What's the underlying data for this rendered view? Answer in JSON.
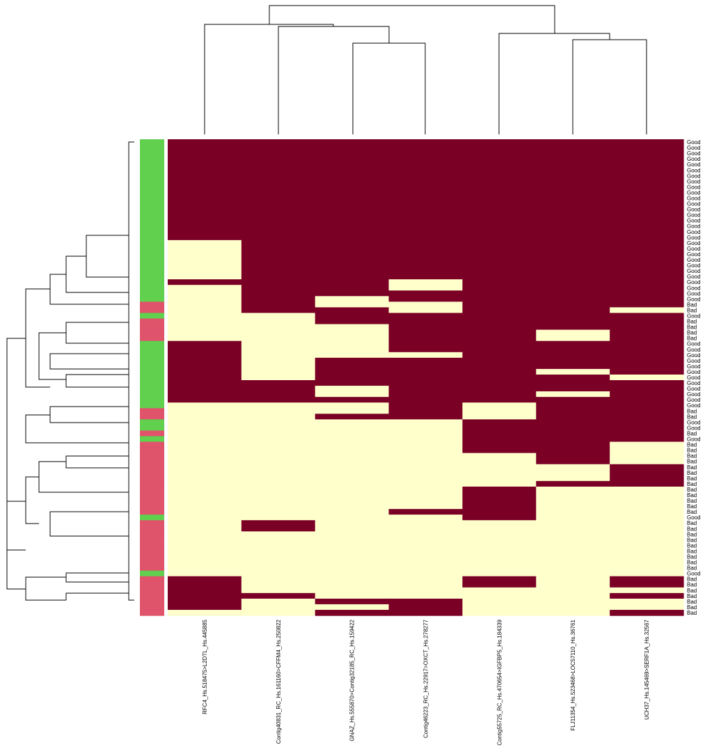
{
  "colors": {
    "high": "#7a0026",
    "low": "#ffffcc",
    "good": "#61d04f",
    "bad": "#df536b"
  },
  "chart_data": {
    "type": "heatmap",
    "title": "",
    "xlabel": "",
    "ylabel": "",
    "columns": [
      "RFC4_Hs.518475>L2DTL_Hs.445885",
      "Contig40831_RC_Hs.161160>CFFM4_Hs.250822",
      "GNAZ_Hs.555870>Contig32185_RC_Hs.159422",
      "Contig46223_RC_Hs.22917>OXCT_Hs.278277",
      "Contig55725_RC_Hs.470654>IGFBP5_Hs.184339",
      "FLJ11354_Hs.523468>LOC57110_Hs.36761",
      "UCH37_Hs.145469>SERF1A_Hs.32567"
    ],
    "row_labels": [
      "Good",
      "Good",
      "Good",
      "Good",
      "Good",
      "Good",
      "Good",
      "Good",
      "Good",
      "Good",
      "Good",
      "Good",
      "Good",
      "Good",
      "Good",
      "Good",
      "Good",
      "Good",
      "Good",
      "Good",
      "Good",
      "Good",
      "Good",
      "Good",
      "Good",
      "Good",
      "Good",
      "Good",
      "Good",
      "Bad",
      "Bad",
      "Good",
      "Bad",
      "Bad",
      "Bad",
      "Bad",
      "Good",
      "Good",
      "Good",
      "Good",
      "Good",
      "Good",
      "Good",
      "Good",
      "Good",
      "Good",
      "Good",
      "Good",
      "Bad",
      "Bad",
      "Good",
      "Good",
      "Bad",
      "Good",
      "Bad",
      "Bad",
      "Bad",
      "Bad",
      "Bad",
      "Bad",
      "Bad",
      "Bad",
      "Bad",
      "Bad",
      "Bad",
      "Bad",
      "Bad",
      "Good",
      "Bad",
      "Bad",
      "Bad",
      "Bad",
      "Bad",
      "Bad",
      "Bad",
      "Bad",
      "Bad",
      "Good",
      "Bad",
      "Bad",
      "Bad",
      "Bad",
      "Bad",
      "Bad",
      "Bad"
    ],
    "values": [
      [
        1,
        1,
        1,
        1,
        1,
        1,
        1
      ],
      [
        1,
        1,
        1,
        1,
        1,
        1,
        1
      ],
      [
        1,
        1,
        1,
        1,
        1,
        1,
        1
      ],
      [
        1,
        1,
        1,
        1,
        1,
        1,
        1
      ],
      [
        1,
        1,
        1,
        1,
        1,
        1,
        1
      ],
      [
        1,
        1,
        1,
        1,
        1,
        1,
        1
      ],
      [
        1,
        1,
        1,
        1,
        1,
        1,
        1
      ],
      [
        1,
        1,
        1,
        1,
        1,
        1,
        1
      ],
      [
        1,
        1,
        1,
        1,
        1,
        1,
        1
      ],
      [
        1,
        1,
        1,
        1,
        1,
        1,
        1
      ],
      [
        1,
        1,
        1,
        1,
        1,
        1,
        1
      ],
      [
        1,
        1,
        1,
        1,
        1,
        1,
        1
      ],
      [
        1,
        1,
        1,
        1,
        1,
        1,
        1
      ],
      [
        1,
        1,
        1,
        1,
        1,
        1,
        1
      ],
      [
        1,
        1,
        1,
        1,
        1,
        1,
        1
      ],
      [
        1,
        1,
        1,
        1,
        1,
        1,
        1
      ],
      [
        1,
        1,
        1,
        1,
        1,
        1,
        1
      ],
      [
        1,
        1,
        1,
        1,
        1,
        1,
        1
      ],
      [
        0,
        1,
        1,
        1,
        1,
        1,
        1
      ],
      [
        0,
        1,
        1,
        1,
        1,
        1,
        1
      ],
      [
        0,
        1,
        1,
        1,
        1,
        1,
        1
      ],
      [
        0,
        1,
        1,
        1,
        1,
        1,
        1
      ],
      [
        0,
        1,
        1,
        1,
        1,
        1,
        1
      ],
      [
        0,
        1,
        1,
        1,
        1,
        1,
        1
      ],
      [
        0,
        1,
        1,
        1,
        1,
        1,
        1
      ],
      [
        1,
        1,
        1,
        0,
        1,
        1,
        1
      ],
      [
        0,
        1,
        1,
        0,
        1,
        1,
        1
      ],
      [
        0,
        1,
        1,
        1,
        1,
        1,
        1
      ],
      [
        0,
        1,
        0,
        1,
        1,
        1,
        1
      ],
      [
        0,
        1,
        0,
        0,
        1,
        1,
        1
      ],
      [
        0,
        1,
        1,
        0,
        1,
        1,
        0
      ],
      [
        0,
        0,
        1,
        1,
        1,
        1,
        1
      ],
      [
        0,
        0,
        1,
        1,
        1,
        1,
        1
      ],
      [
        0,
        0,
        0,
        1,
        1,
        1,
        1
      ],
      [
        0,
        0,
        0,
        1,
        1,
        0,
        1
      ],
      [
        0,
        0,
        0,
        1,
        1,
        0,
        1
      ],
      [
        1,
        0,
        0,
        1,
        1,
        1,
        1
      ],
      [
        1,
        0,
        0,
        1,
        1,
        1,
        1
      ],
      [
        1,
        0,
        0,
        0,
        1,
        1,
        1
      ],
      [
        1,
        0,
        1,
        1,
        1,
        1,
        1
      ],
      [
        1,
        0,
        1,
        1,
        1,
        1,
        1
      ],
      [
        1,
        0,
        1,
        1,
        1,
        0,
        1
      ],
      [
        1,
        0,
        1,
        1,
        1,
        1,
        0
      ],
      [
        1,
        1,
        1,
        1,
        1,
        1,
        1
      ],
      [
        1,
        1,
        0,
        1,
        1,
        1,
        1
      ],
      [
        1,
        1,
        0,
        1,
        1,
        0,
        1
      ],
      [
        1,
        1,
        1,
        1,
        1,
        1,
        1
      ],
      [
        0,
        0,
        0,
        1,
        0,
        1,
        1
      ],
      [
        0,
        0,
        0,
        1,
        0,
        1,
        1
      ],
      [
        0,
        0,
        1,
        1,
        0,
        1,
        1
      ],
      [
        0,
        0,
        0,
        0,
        1,
        1,
        1
      ],
      [
        0,
        0,
        0,
        0,
        1,
        1,
        1
      ],
      [
        0,
        0,
        0,
        0,
        1,
        1,
        1
      ],
      [
        0,
        0,
        0,
        0,
        1,
        1,
        1
      ],
      [
        0,
        0,
        0,
        0,
        1,
        1,
        0
      ],
      [
        0,
        0,
        0,
        0,
        1,
        1,
        0
      ],
      [
        0,
        0,
        0,
        0,
        0,
        1,
        0
      ],
      [
        0,
        0,
        0,
        0,
        0,
        1,
        0
      ],
      [
        0,
        0,
        0,
        0,
        0,
        0,
        1
      ],
      [
        0,
        0,
        0,
        0,
        0,
        0,
        1
      ],
      [
        0,
        0,
        0,
        0,
        0,
        0,
        1
      ],
      [
        0,
        0,
        0,
        0,
        0,
        1,
        1
      ],
      [
        0,
        0,
        0,
        0,
        1,
        0,
        0
      ],
      [
        0,
        0,
        0,
        0,
        1,
        0,
        0
      ],
      [
        0,
        0,
        0,
        0,
        1,
        0,
        0
      ],
      [
        0,
        0,
        0,
        0,
        1,
        0,
        0
      ],
      [
        0,
        0,
        0,
        1,
        1,
        0,
        0
      ],
      [
        0,
        0,
        0,
        0,
        1,
        0,
        0
      ],
      [
        0,
        1,
        0,
        0,
        0,
        0,
        0
      ],
      [
        0,
        1,
        0,
        0,
        0,
        0,
        0
      ],
      [
        0,
        0,
        0,
        0,
        0,
        0,
        0
      ],
      [
        0,
        0,
        0,
        0,
        0,
        0,
        0
      ],
      [
        0,
        0,
        0,
        0,
        0,
        0,
        0
      ],
      [
        0,
        0,
        0,
        0,
        0,
        0,
        0
      ],
      [
        0,
        0,
        0,
        0,
        0,
        0,
        0
      ],
      [
        0,
        0,
        0,
        0,
        0,
        0,
        0
      ],
      [
        0,
        0,
        0,
        0,
        0,
        0,
        0
      ],
      [
        0,
        0,
        0,
        0,
        0,
        0,
        0
      ],
      [
        1,
        0,
        0,
        0,
        1,
        0,
        1
      ],
      [
        1,
        0,
        0,
        0,
        1,
        0,
        1
      ],
      [
        1,
        0,
        0,
        0,
        0,
        0,
        0
      ],
      [
        1,
        1,
        0,
        0,
        0,
        0,
        1
      ],
      [
        1,
        0,
        1,
        1,
        0,
        0,
        0
      ],
      [
        1,
        0,
        0,
        1,
        0,
        0,
        0
      ],
      [
        0,
        0,
        1,
        1,
        0,
        0,
        1
      ]
    ],
    "value_scale": {
      "low": 0,
      "high": 1
    }
  }
}
